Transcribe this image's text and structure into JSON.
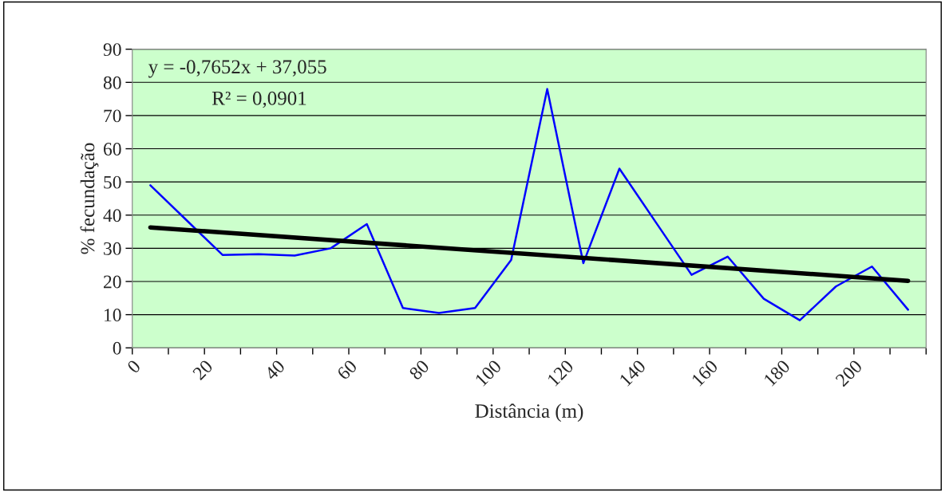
{
  "chart_data": {
    "type": "line",
    "xlabel": "Distância (m)",
    "ylabel": "% fecundação",
    "xlim": [
      0,
      220
    ],
    "ylim": [
      0,
      90
    ],
    "xticks": [
      0,
      {
        "value": 10,
        "label": null
      },
      20,
      {
        "value": 30,
        "label": null
      },
      40,
      {
        "value": 50,
        "label": null
      },
      60,
      {
        "value": 70,
        "label": null
      },
      80,
      {
        "value": 90,
        "label": null
      },
      100,
      {
        "value": 110,
        "label": null
      },
      120,
      {
        "value": 130,
        "label": null
      },
      140,
      {
        "value": 150,
        "label": null
      },
      160,
      {
        "value": 170,
        "label": null
      },
      180,
      {
        "value": 190,
        "label": null
      },
      200,
      {
        "value": 210,
        "label": null
      },
      {
        "value": 220,
        "label": null
      }
    ],
    "yticks": [
      0,
      10,
      20,
      30,
      40,
      50,
      60,
      70,
      80,
      90
    ],
    "grid": "y",
    "legend": false,
    "marker": "none",
    "line_style": "solid",
    "x": [
      5,
      15,
      25,
      35,
      45,
      55,
      65,
      75,
      85,
      95,
      105,
      115,
      125,
      135,
      145,
      155,
      165,
      175,
      185,
      195,
      205,
      215
    ],
    "series": [
      {
        "color": "#0000ff",
        "values": [
          49,
          38.5,
          28,
          28.2,
          27.8,
          30,
          37.3,
          12,
          10.5,
          12,
          26.5,
          78,
          25.5,
          54,
          38,
          22,
          27.5,
          14.8,
          8.3,
          18.5,
          24.5,
          11.5
        ]
      },
      {
        "color": "#000000",
        "x": [
          5,
          215
        ],
        "values": [
          36.3,
          20.2
        ]
      }
    ],
    "annotations": [
      "y = -0,7652x + 37,055",
      "R² = 0,0901"
    ]
  }
}
